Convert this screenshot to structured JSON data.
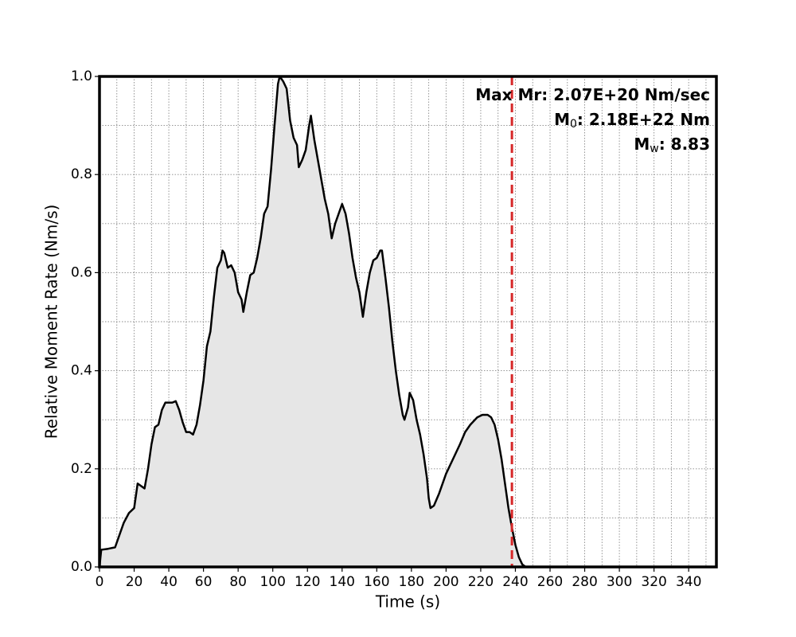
{
  "chart_data": {
    "type": "area",
    "x_label": "Time (s)",
    "y_label": "Relative Moment Rate (Nm/s)",
    "xlim": [
      0,
      356
    ],
    "ylim": [
      0,
      1
    ],
    "xticks": [
      0,
      20,
      40,
      60,
      80,
      100,
      120,
      140,
      160,
      180,
      200,
      220,
      240,
      260,
      280,
      300,
      320,
      340
    ],
    "yticks": [
      {
        "value": 0,
        "label": "0.0"
      },
      0.2,
      0.4,
      0.6,
      0.8,
      {
        "value": 1,
        "label": "1.0"
      }
    ],
    "x_grid": [
      0,
      10,
      20,
      30,
      40,
      50,
      60,
      70,
      80,
      90,
      100,
      110,
      120,
      130,
      140,
      150,
      160,
      170,
      180,
      190,
      200,
      210,
      220,
      230,
      240,
      250,
      260,
      270,
      280,
      290,
      300,
      310,
      320,
      330,
      340,
      350
    ],
    "y_grid": [
      0.1,
      0.2,
      0.3,
      0.4,
      0.5,
      0.6,
      0.7,
      0.8,
      0.9
    ],
    "grid": true,
    "line_color": "#000000",
    "fill_color": "#e6e6e6",
    "x": [
      0,
      1,
      5,
      9,
      12,
      14,
      17,
      20,
      22,
      24,
      26,
      28,
      30,
      32,
      34,
      36,
      38,
      42,
      44,
      46,
      48,
      50,
      52,
      54,
      56,
      58,
      60,
      62,
      64,
      66,
      68,
      70,
      71,
      72,
      74,
      76,
      78,
      80,
      82,
      83,
      85,
      87,
      89,
      91,
      93,
      95,
      97,
      99,
      101,
      103,
      104,
      106,
      108,
      110,
      112,
      114,
      115,
      117,
      119,
      121,
      122,
      124,
      126,
      128,
      130,
      132,
      134,
      136,
      138,
      140,
      142,
      144,
      146,
      148,
      150,
      152,
      154,
      156,
      158,
      160,
      162,
      163,
      165,
      167,
      169,
      171,
      173,
      175,
      176,
      178,
      179,
      181,
      183,
      185,
      187,
      189,
      190,
      191,
      193,
      196,
      200,
      204,
      208,
      211,
      214,
      218,
      221,
      224,
      226,
      228,
      230,
      232,
      234,
      236,
      238,
      240,
      242,
      244,
      246,
      356
    ],
    "values": [
      0,
      0.035,
      0.037,
      0.04,
      0.07,
      0.09,
      0.11,
      0.12,
      0.17,
      0.165,
      0.16,
      0.2,
      0.25,
      0.285,
      0.29,
      0.32,
      0.335,
      0.335,
      0.338,
      0.32,
      0.295,
      0.275,
      0.275,
      0.27,
      0.29,
      0.33,
      0.38,
      0.45,
      0.48,
      0.55,
      0.61,
      0.625,
      0.645,
      0.64,
      0.61,
      0.615,
      0.6,
      0.56,
      0.545,
      0.52,
      0.56,
      0.595,
      0.6,
      0.63,
      0.67,
      0.72,
      0.735,
      0.81,
      0.9,
      0.985,
      1.0,
      0.99,
      0.975,
      0.91,
      0.875,
      0.86,
      0.815,
      0.83,
      0.85,
      0.9,
      0.92,
      0.87,
      0.83,
      0.79,
      0.75,
      0.72,
      0.67,
      0.7,
      0.72,
      0.74,
      0.72,
      0.68,
      0.63,
      0.59,
      0.56,
      0.51,
      0.56,
      0.6,
      0.625,
      0.63,
      0.645,
      0.645,
      0.59,
      0.53,
      0.46,
      0.4,
      0.35,
      0.31,
      0.3,
      0.325,
      0.355,
      0.34,
      0.3,
      0.27,
      0.23,
      0.18,
      0.14,
      0.12,
      0.125,
      0.15,
      0.19,
      0.22,
      0.25,
      0.275,
      0.29,
      0.305,
      0.31,
      0.31,
      0.305,
      0.29,
      0.26,
      0.22,
      0.17,
      0.12,
      0.08,
      0.045,
      0.02,
      0.005,
      0,
      0
    ],
    "vline": {
      "x": 238,
      "color": "#d62728"
    },
    "annotations": [
      {
        "text": "Max Mr: 2.07E+20 Nm/sec"
      },
      {
        "base": "M",
        "sub": "0",
        "rest": ": 2.18E+22 Nm"
      },
      {
        "base": "M",
        "sub": "w",
        "rest": ": 8.83"
      }
    ]
  }
}
